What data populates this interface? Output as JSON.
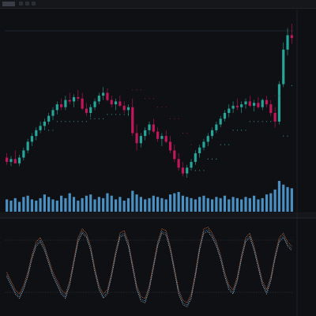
{
  "chart_data": {
    "type": "candlestick",
    "colors": {
      "up": "#26a69a",
      "down": "#c2185b",
      "volume": "#4a90c2",
      "background": "#0f1014",
      "stop_up": "#4dd0c4",
      "stop_down": "#b0184a",
      "osc_line1": "#e0e0e0",
      "osc_line2": "#4a90c2",
      "osc_line3": "#e0763a"
    },
    "price_axis": {
      "min": 0,
      "max": 100,
      "grid": false
    },
    "candles": [
      {
        "o": 45,
        "h": 48,
        "l": 40,
        "c": 42
      },
      {
        "o": 42,
        "h": 46,
        "l": 39,
        "c": 44
      },
      {
        "o": 44,
        "h": 50,
        "l": 41,
        "c": 41
      },
      {
        "o": 41,
        "h": 47,
        "l": 39,
        "c": 45
      },
      {
        "o": 45,
        "h": 52,
        "l": 43,
        "c": 50
      },
      {
        "o": 50,
        "h": 58,
        "l": 48,
        "c": 56
      },
      {
        "o": 56,
        "h": 62,
        "l": 53,
        "c": 60
      },
      {
        "o": 60,
        "h": 66,
        "l": 57,
        "c": 64
      },
      {
        "o": 64,
        "h": 70,
        "l": 62,
        "c": 67
      },
      {
        "o": 67,
        "h": 72,
        "l": 64,
        "c": 70
      },
      {
        "o": 70,
        "h": 76,
        "l": 68,
        "c": 74
      },
      {
        "o": 74,
        "h": 80,
        "l": 71,
        "c": 78
      },
      {
        "o": 78,
        "h": 84,
        "l": 75,
        "c": 82
      },
      {
        "o": 82,
        "h": 86,
        "l": 78,
        "c": 80
      },
      {
        "o": 80,
        "h": 88,
        "l": 78,
        "c": 85
      },
      {
        "o": 85,
        "h": 90,
        "l": 82,
        "c": 84
      },
      {
        "o": 84,
        "h": 89,
        "l": 80,
        "c": 87
      },
      {
        "o": 87,
        "h": 92,
        "l": 84,
        "c": 86
      },
      {
        "o": 86,
        "h": 90,
        "l": 78,
        "c": 79
      },
      {
        "o": 79,
        "h": 83,
        "l": 74,
        "c": 76
      },
      {
        "o": 76,
        "h": 82,
        "l": 73,
        "c": 80
      },
      {
        "o": 80,
        "h": 86,
        "l": 78,
        "c": 84
      },
      {
        "o": 84,
        "h": 90,
        "l": 82,
        "c": 88
      },
      {
        "o": 88,
        "h": 94,
        "l": 85,
        "c": 90
      },
      {
        "o": 90,
        "h": 93,
        "l": 84,
        "c": 85
      },
      {
        "o": 85,
        "h": 88,
        "l": 80,
        "c": 82
      },
      {
        "o": 82,
        "h": 86,
        "l": 78,
        "c": 84
      },
      {
        "o": 84,
        "h": 88,
        "l": 80,
        "c": 81
      },
      {
        "o": 81,
        "h": 84,
        "l": 76,
        "c": 78
      },
      {
        "o": 78,
        "h": 82,
        "l": 74,
        "c": 80
      },
      {
        "o": 80,
        "h": 86,
        "l": 60,
        "c": 62
      },
      {
        "o": 62,
        "h": 68,
        "l": 50,
        "c": 55
      },
      {
        "o": 55,
        "h": 62,
        "l": 52,
        "c": 60
      },
      {
        "o": 60,
        "h": 66,
        "l": 57,
        "c": 64
      },
      {
        "o": 64,
        "h": 70,
        "l": 61,
        "c": 68
      },
      {
        "o": 68,
        "h": 72,
        "l": 62,
        "c": 63
      },
      {
        "o": 63,
        "h": 66,
        "l": 56,
        "c": 58
      },
      {
        "o": 58,
        "h": 62,
        "l": 53,
        "c": 60
      },
      {
        "o": 60,
        "h": 64,
        "l": 55,
        "c": 56
      },
      {
        "o": 56,
        "h": 60,
        "l": 48,
        "c": 50
      },
      {
        "o": 50,
        "h": 54,
        "l": 42,
        "c": 44
      },
      {
        "o": 44,
        "h": 48,
        "l": 36,
        "c": 38
      },
      {
        "o": 38,
        "h": 42,
        "l": 32,
        "c": 34
      },
      {
        "o": 34,
        "h": 40,
        "l": 31,
        "c": 38
      },
      {
        "o": 38,
        "h": 44,
        "l": 36,
        "c": 42
      },
      {
        "o": 42,
        "h": 50,
        "l": 40,
        "c": 48
      },
      {
        "o": 48,
        "h": 54,
        "l": 45,
        "c": 52
      },
      {
        "o": 52,
        "h": 58,
        "l": 50,
        "c": 56
      },
      {
        "o": 56,
        "h": 62,
        "l": 53,
        "c": 60
      },
      {
        "o": 60,
        "h": 66,
        "l": 58,
        "c": 64
      },
      {
        "o": 64,
        "h": 70,
        "l": 62,
        "c": 68
      },
      {
        "o": 68,
        "h": 74,
        "l": 66,
        "c": 72
      },
      {
        "o": 72,
        "h": 78,
        "l": 70,
        "c": 76
      },
      {
        "o": 76,
        "h": 82,
        "l": 73,
        "c": 79
      },
      {
        "o": 79,
        "h": 84,
        "l": 76,
        "c": 81
      },
      {
        "o": 81,
        "h": 86,
        "l": 78,
        "c": 80
      },
      {
        "o": 80,
        "h": 84,
        "l": 76,
        "c": 82
      },
      {
        "o": 82,
        "h": 86,
        "l": 79,
        "c": 84
      },
      {
        "o": 84,
        "h": 88,
        "l": 80,
        "c": 81
      },
      {
        "o": 81,
        "h": 85,
        "l": 77,
        "c": 83
      },
      {
        "o": 83,
        "h": 87,
        "l": 79,
        "c": 80
      },
      {
        "o": 80,
        "h": 86,
        "l": 78,
        "c": 85
      },
      {
        "o": 85,
        "h": 88,
        "l": 80,
        "c": 82
      },
      {
        "o": 82,
        "h": 85,
        "l": 74,
        "c": 76
      },
      {
        "o": 76,
        "h": 80,
        "l": 66,
        "c": 70
      },
      {
        "o": 70,
        "h": 98,
        "l": 68,
        "c": 96
      },
      {
        "o": 96,
        "h": 125,
        "l": 94,
        "c": 120
      },
      {
        "o": 120,
        "h": 135,
        "l": 116,
        "c": 130
      },
      {
        "o": 130,
        "h": 138,
        "l": 124,
        "c": 128
      }
    ],
    "volume": [
      20,
      18,
      22,
      16,
      24,
      26,
      20,
      18,
      22,
      28,
      24,
      20,
      18,
      26,
      22,
      30,
      24,
      18,
      22,
      26,
      28,
      20,
      24,
      22,
      30,
      26,
      20,
      24,
      18,
      22,
      34,
      28,
      24,
      20,
      22,
      26,
      24,
      22,
      20,
      28,
      30,
      32,
      26,
      24,
      22,
      20,
      24,
      26,
      22,
      20,
      24,
      22,
      26,
      20,
      24,
      22,
      20,
      24,
      22,
      26,
      20,
      22,
      28,
      30,
      36,
      50,
      44,
      40,
      38
    ],
    "stop_line": [
      {
        "i": 10,
        "v": 64,
        "dir": "up"
      },
      {
        "i": 12,
        "v": 70,
        "dir": "up"
      },
      {
        "i": 14,
        "v": 70,
        "dir": "up"
      },
      {
        "i": 18,
        "v": 70,
        "dir": "up"
      },
      {
        "i": 20,
        "v": 72,
        "dir": "up"
      },
      {
        "i": 24,
        "v": 75,
        "dir": "up"
      },
      {
        "i": 26,
        "v": 75,
        "dir": "up"
      },
      {
        "i": 28,
        "v": 75,
        "dir": "up"
      },
      {
        "i": 29,
        "v": 75,
        "dir": "up"
      },
      {
        "i": 30,
        "v": 92,
        "dir": "down"
      },
      {
        "i": 33,
        "v": 86,
        "dir": "down"
      },
      {
        "i": 36,
        "v": 80,
        "dir": "down"
      },
      {
        "i": 39,
        "v": 72,
        "dir": "down"
      },
      {
        "i": 42,
        "v": 62,
        "dir": "down"
      },
      {
        "i": 44,
        "v": 54,
        "dir": "down"
      },
      {
        "i": 45,
        "v": 36,
        "dir": "up"
      },
      {
        "i": 48,
        "v": 44,
        "dir": "up"
      },
      {
        "i": 51,
        "v": 54,
        "dir": "up"
      },
      {
        "i": 54,
        "v": 64,
        "dir": "up"
      },
      {
        "i": 58,
        "v": 70,
        "dir": "up"
      },
      {
        "i": 62,
        "v": 70,
        "dir": "up"
      },
      {
        "i": 63,
        "v": 70,
        "dir": "up"
      },
      {
        "i": 64,
        "v": 88,
        "dir": "down"
      },
      {
        "i": 65,
        "v": 88,
        "dir": "down"
      },
      {
        "i": 66,
        "v": 60,
        "dir": "up"
      },
      {
        "i": 68,
        "v": 95,
        "dir": "up"
      }
    ],
    "oscillator": {
      "range": [
        0,
        100
      ],
      "lines": [
        80,
        20
      ],
      "values": [
        40,
        30,
        20,
        15,
        25,
        40,
        60,
        75,
        80,
        70,
        55,
        40,
        30,
        20,
        15,
        30,
        55,
        80,
        90,
        85,
        70,
        45,
        25,
        15,
        20,
        40,
        65,
        85,
        88,
        75,
        50,
        25,
        12,
        10,
        25,
        50,
        75,
        90,
        88,
        70,
        45,
        20,
        8,
        5,
        15,
        40,
        70,
        90,
        92,
        85,
        75,
        60,
        40,
        25,
        20,
        35,
        60,
        80,
        85,
        70,
        50,
        30,
        20,
        35,
        60,
        80,
        85,
        75,
        70
      ]
    }
  }
}
